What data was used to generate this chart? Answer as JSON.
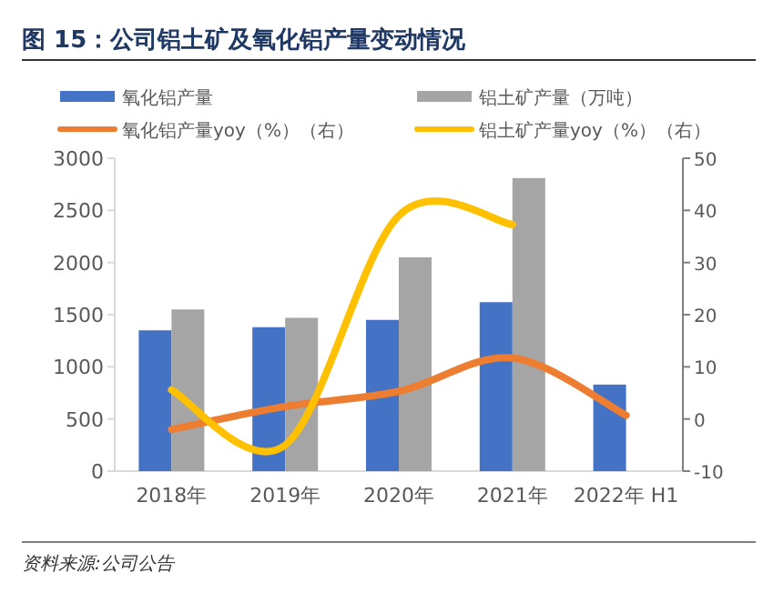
{
  "chart_data": {
    "type": "bar",
    "title": "图 15：公司铝土矿及氧化铝产量变动情况",
    "categories": [
      "2018年",
      "2019年",
      "2020年",
      "2021年",
      "2022年 H1"
    ],
    "series": [
      {
        "name": "氧化铝产量",
        "color": "#4472c4",
        "values": [
          1350,
          1380,
          1450,
          1620,
          830
        ]
      },
      {
        "name": "铝土矿产量（万吨）",
        "color": "#a5a5a5",
        "values": [
          1550,
          1470,
          2050,
          2810,
          null
        ]
      },
      {
        "type": "line",
        "name": "氧化铝产量yoy（%）（右）",
        "color": "#ed7d31",
        "axis": "y2",
        "values": [
          -2.0,
          2.4,
          5.3,
          11.7,
          0.7
        ]
      },
      {
        "type": "line",
        "name": "铝土矿产量yoy（%）（右）",
        "color": "#ffc000",
        "axis": "y2",
        "values": [
          5.6,
          -5,
          39,
          37.3,
          null
        ]
      }
    ],
    "ylim": [
      0,
      3000
    ],
    "yticks": [
      0,
      500,
      1000,
      1500,
      2000,
      2500,
      3000
    ],
    "y2lim": [
      -10,
      50
    ],
    "y2ticks": [
      -10,
      0,
      10,
      20,
      30,
      40,
      50
    ],
    "legend": "top",
    "line_style": "solid",
    "annotations": [
      "资料来源:公司公告"
    ]
  }
}
